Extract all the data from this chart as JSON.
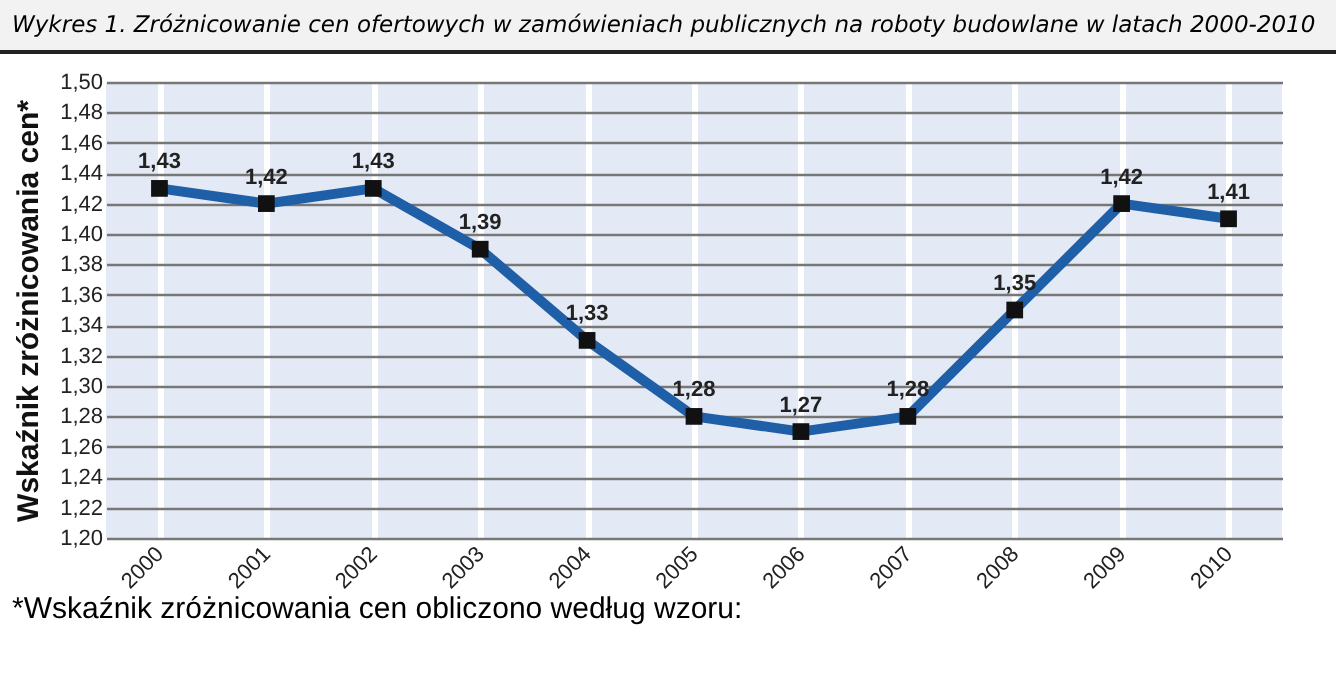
{
  "chart_data": {
    "type": "line",
    "title": "Wykres 1. Zróżnicowanie cen ofertowych w zamówieniach publicznych na roboty budowlane w latach 2000-2010",
    "ylabel": "Wskaźnik zróżnicowania cen*",
    "annotations": [
      "*Wskaźnik zróżnicowania cen obliczono według wzoru:"
    ],
    "categories": [
      "2000",
      "2001",
      "2002",
      "2003",
      "2004",
      "2005",
      "2006",
      "2007",
      "2008",
      "2009",
      "2010"
    ],
    "series": [
      {
        "color": "#1f5fa8",
        "values": [
          1.43,
          1.42,
          1.43,
          1.39,
          1.33,
          1.28,
          1.27,
          1.28,
          1.35,
          1.42,
          1.41
        ],
        "value_labels": [
          "1,43",
          "1,42",
          "1,43",
          "1,39",
          "1,33",
          "1,28",
          "1,27",
          "1,28",
          "1,35",
          "1,42",
          "1,41"
        ]
      }
    ],
    "ylim": [
      1.2,
      1.5
    ],
    "yticks": [
      {
        "value": 1.2,
        "label": "1,20"
      },
      {
        "value": 1.22,
        "label": "1,22"
      },
      {
        "value": 1.24,
        "label": "1,24"
      },
      {
        "value": 1.26,
        "label": "1,26"
      },
      {
        "value": 1.28,
        "label": "1,28"
      },
      {
        "value": 1.3,
        "label": "1,30"
      },
      {
        "value": 1.32,
        "label": "1,32"
      },
      {
        "value": 1.34,
        "label": "1,34"
      },
      {
        "value": 1.36,
        "label": "1,36"
      },
      {
        "value": 1.38,
        "label": "1,38"
      },
      {
        "value": 1.4,
        "label": "1,40"
      },
      {
        "value": 1.42,
        "label": "1,42"
      },
      {
        "value": 1.44,
        "label": "1,44"
      },
      {
        "value": 1.46,
        "label": "1,46"
      },
      {
        "value": 1.48,
        "label": "1,48"
      },
      {
        "value": 1.5,
        "label": "1,50"
      }
    ],
    "grid": true,
    "marker": "square",
    "line_style": "solid"
  }
}
